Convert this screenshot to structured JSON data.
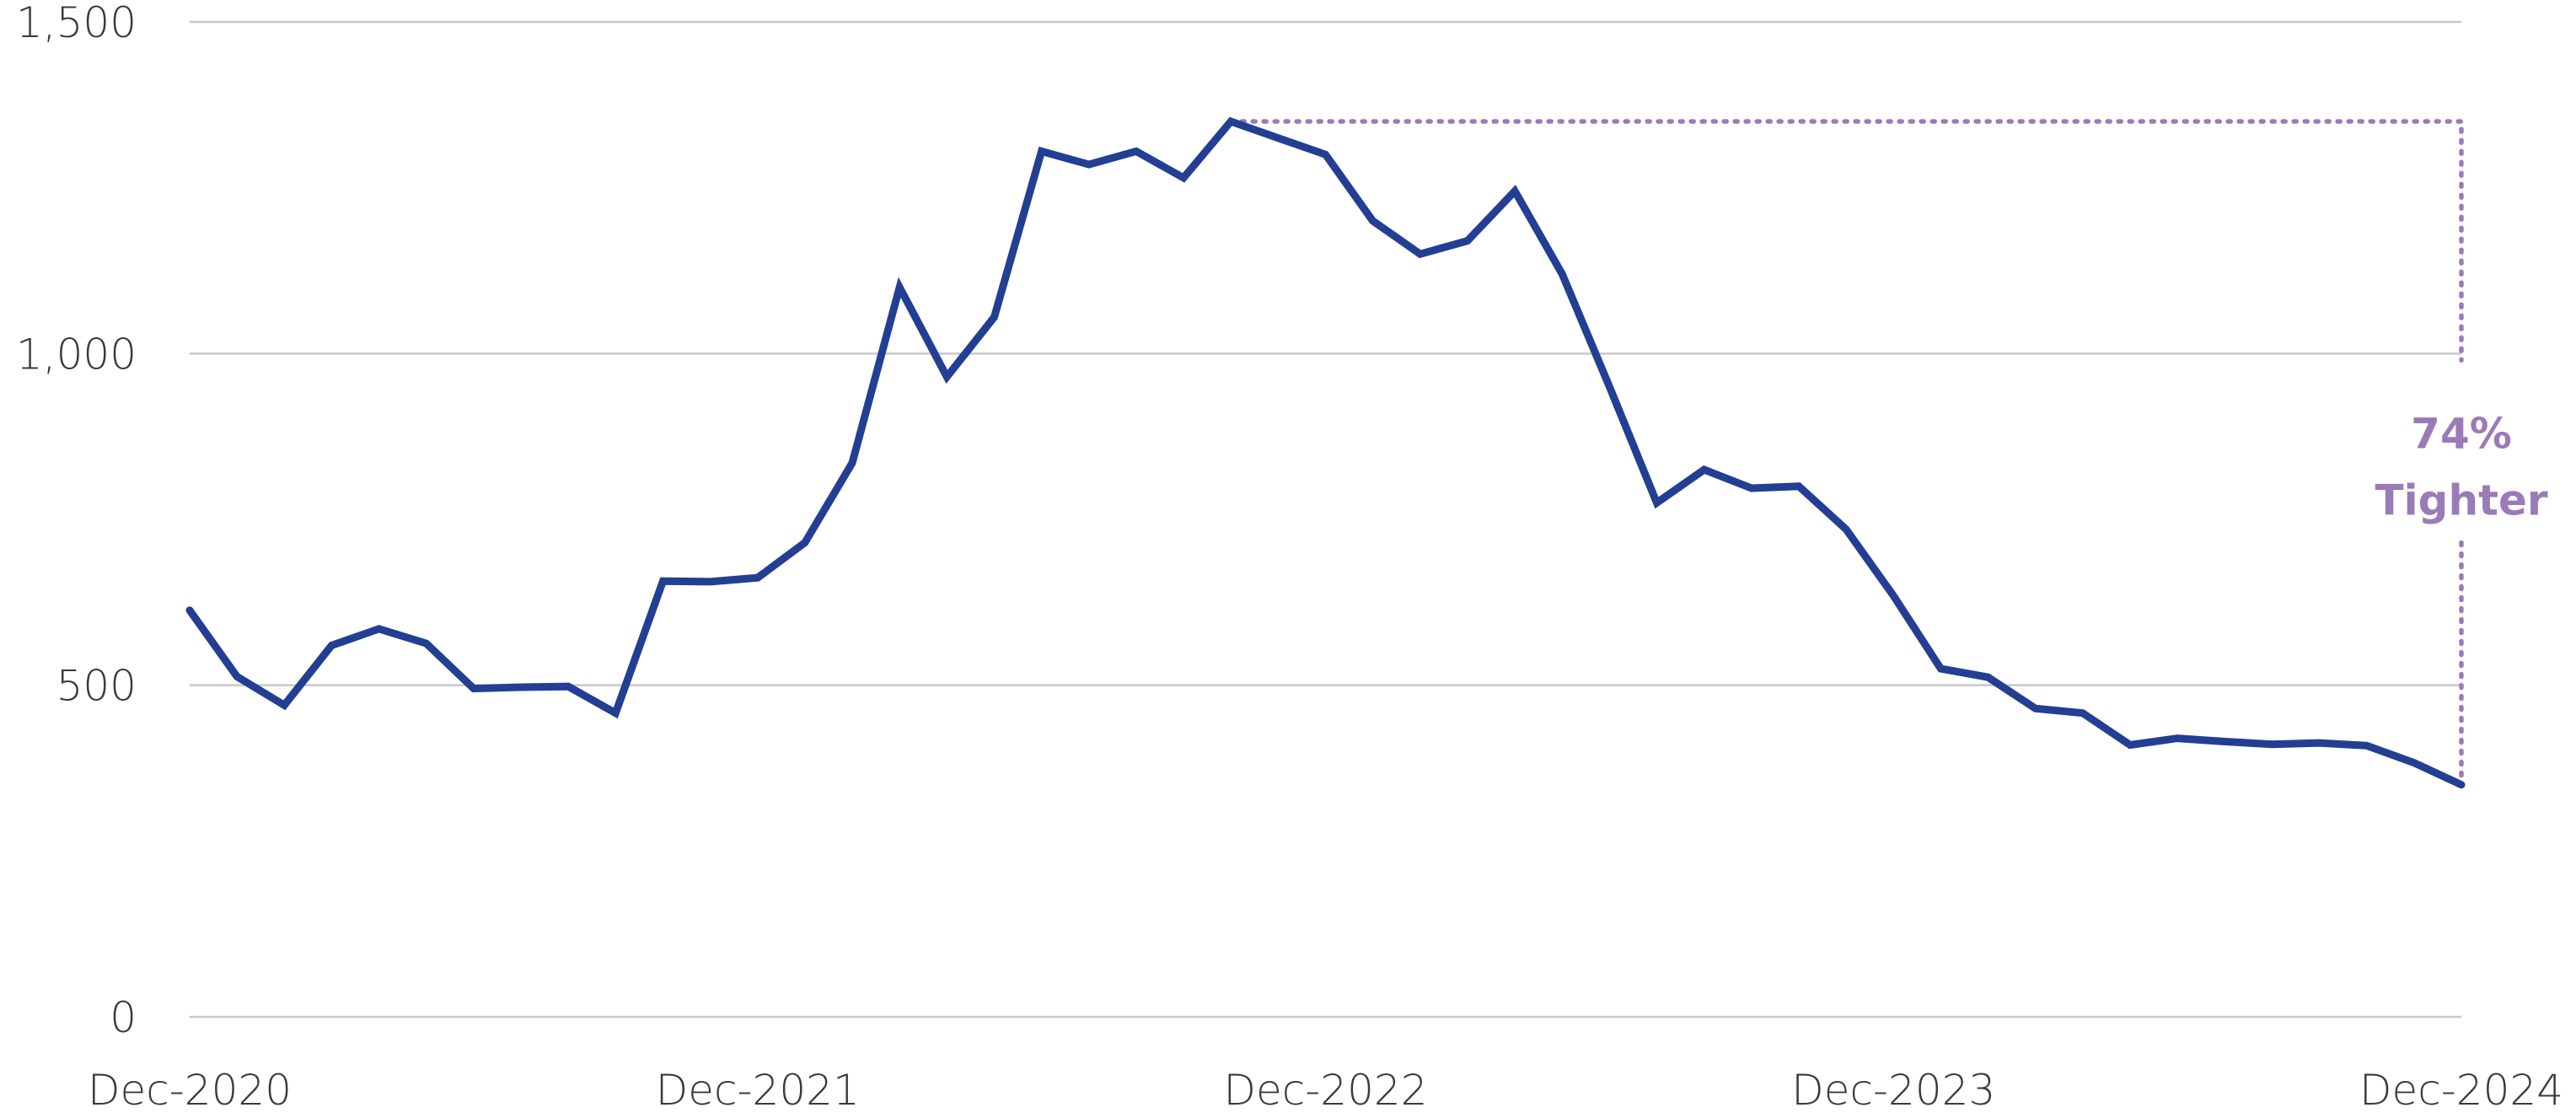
{
  "chart_data": {
    "type": "line",
    "y_ticks": [
      "0",
      "500",
      "1,000",
      "1,500"
    ],
    "y_tick_values": [
      0,
      500,
      1000,
      1500
    ],
    "ylim": [
      0,
      1500
    ],
    "x_ticks": [
      "Dec-2020",
      "Dec-2021",
      "Dec-2022",
      "Dec-2023",
      "Dec-2024"
    ],
    "x_range": [
      "2020-12",
      "2024-12"
    ],
    "grid": true,
    "series": [
      {
        "color": "#233f94",
        "x": [
          "2020-12",
          "2021-01",
          "2021-02",
          "2021-03",
          "2021-04",
          "2021-05",
          "2021-06",
          "2021-07",
          "2021-08",
          "2021-09",
          "2021-10",
          "2021-11",
          "2021-12",
          "2022-01",
          "2022-02",
          "2022-03",
          "2022-04",
          "2022-05",
          "2022-06",
          "2022-07",
          "2022-08",
          "2022-09",
          "2022-10",
          "2022-11",
          "2022-12",
          "2023-01",
          "2023-02",
          "2023-03",
          "2023-04",
          "2023-05",
          "2023-06",
          "2023-07",
          "2023-08",
          "2023-09",
          "2023-10",
          "2023-11",
          "2023-12",
          "2024-01",
          "2024-02",
          "2024-03",
          "2024-04",
          "2024-05",
          "2024-06",
          "2024-07",
          "2024-08",
          "2024-09",
          "2024-10",
          "2024-11",
          "2024-12"
        ],
        "values": [
          613,
          513,
          470,
          560,
          585,
          563,
          495,
          497,
          498,
          458,
          657,
          656,
          662,
          715,
          835,
          1100,
          965,
          1055,
          1305,
          1285,
          1305,
          1265,
          1350,
          1325,
          1300,
          1200,
          1150,
          1170,
          1245,
          1120,
          950,
          775,
          825,
          797,
          800,
          735,
          635,
          525,
          512,
          465,
          458,
          410,
          420,
          415,
          411,
          413,
          409,
          383,
          350
        ]
      }
    ],
    "annotation": {
      "label_line1": "74%",
      "label_line2": "Tighter",
      "color": "#9b7ab8",
      "peak": {
        "x": "2022-10",
        "value": 1350
      },
      "end": {
        "x": "2024-12",
        "value": 350
      }
    }
  }
}
